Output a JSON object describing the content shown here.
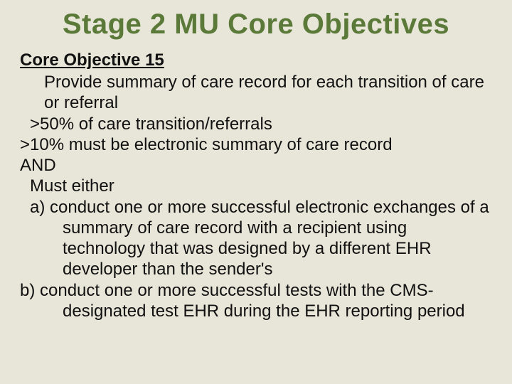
{
  "colors": {
    "background": "#e8e6d9",
    "title": "#5b7a3a",
    "text": "#111111"
  },
  "typography": {
    "title_fontsize": 40,
    "title_weight": 700,
    "body_fontsize": 24,
    "heading_fontsize": 24,
    "heading_weight": 700,
    "line_height": 1.22
  },
  "title": "Stage 2 MU Core Objectives",
  "heading": "Core Objective 15",
  "lines": {
    "l1": "Provide summary of care record for each transition of care or referral",
    "l2": ">50% of care transition/referrals",
    "l3": ">10% must be electronic summary of care record",
    "l4": "AND",
    "l5": "Must either",
    "l6": "a) conduct one or more successful electronic exchanges of a summary of care record with a recipient using technology that was designed by a different EHR developer than the sender's",
    "l7": "b) conduct one or more successful tests with the CMS-designated test EHR during the EHR reporting period"
  }
}
